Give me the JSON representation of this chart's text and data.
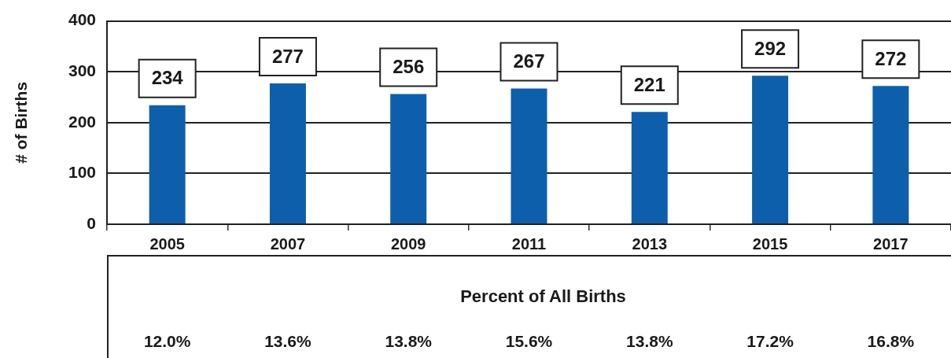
{
  "chart_data": {
    "type": "bar",
    "ylabel": "# of Births",
    "categories": [
      "2005",
      "2007",
      "2009",
      "2011",
      "2013",
      "2015",
      "2017"
    ],
    "values": [
      234,
      277,
      256,
      267,
      221,
      292,
      272
    ],
    "color": "#0d5fab",
    "ylim": [
      0,
      400
    ],
    "yticks": [
      0,
      100,
      200,
      300,
      400
    ],
    "grid": "y",
    "data_labels": true,
    "annotations": [
      "Percent of All Births",
      "12.0%",
      "13.6%",
      "13.8%",
      "15.6%",
      "13.8%",
      "17.2%",
      "16.8%"
    ]
  }
}
